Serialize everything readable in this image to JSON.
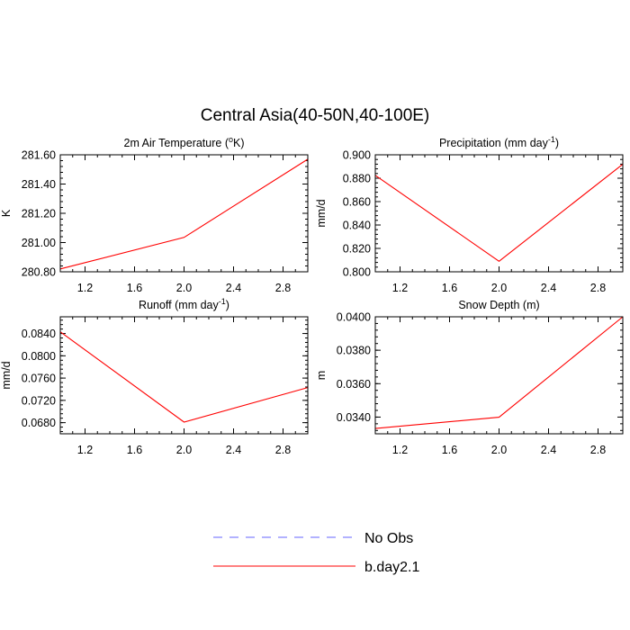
{
  "figure": {
    "title": "Central Asia(40-50N,40-100E)"
  },
  "legend": {
    "items": [
      {
        "label": "No Obs",
        "color": "#6464ff",
        "dashed": true
      },
      {
        "label": "b.day2.1",
        "color": "#ff0000",
        "dashed": false
      }
    ]
  },
  "chart_data": [
    {
      "type": "line",
      "title_main": "2m Air Temperature (",
      "title_sup": "o",
      "title_after": "K)",
      "xlabel": "",
      "ylabel": "K",
      "xlim": [
        1.0,
        3.0
      ],
      "ylim": [
        280.8,
        281.6
      ],
      "x_ticks": [
        "1.2",
        "1.6",
        "2.0",
        "2.4",
        "2.8"
      ],
      "y_ticks": [
        "280.80",
        "281.00",
        "281.20",
        "281.40",
        "281.60"
      ],
      "grid": false,
      "series": [
        {
          "name": "b.day2.1",
          "color": "#ff0000",
          "x": [
            1,
            2,
            3
          ],
          "y": [
            280.82,
            281.035,
            281.57
          ]
        }
      ]
    },
    {
      "type": "line",
      "title_main": "Precipitation (mm day",
      "title_sup": "-1",
      "title_after": ")",
      "xlabel": "",
      "ylabel": "mm/d",
      "xlim": [
        1.0,
        3.0
      ],
      "ylim": [
        0.8,
        0.9
      ],
      "x_ticks": [
        "1.2",
        "1.6",
        "2.0",
        "2.4",
        "2.8"
      ],
      "y_ticks": [
        "0.800",
        "0.820",
        "0.840",
        "0.860",
        "0.880",
        "0.900"
      ],
      "grid": false,
      "series": [
        {
          "name": "b.day2.1",
          "color": "#ff0000",
          "x": [
            1,
            2,
            3
          ],
          "y": [
            0.8825,
            0.809,
            0.892
          ]
        }
      ]
    },
    {
      "type": "line",
      "title_main": "Runoff (mm day",
      "title_sup": "-1",
      "title_after": ")",
      "xlabel": "",
      "ylabel": "mm/d",
      "xlim": [
        1.0,
        3.0
      ],
      "ylim": [
        0.066,
        0.087
      ],
      "x_ticks": [
        "1.2",
        "1.6",
        "2.0",
        "2.4",
        "2.8"
      ],
      "y_ticks": [
        "0.0680",
        "0.0720",
        "0.0760",
        "0.0800",
        "0.0840"
      ],
      "grid": false,
      "series": [
        {
          "name": "b.day2.1",
          "color": "#ff0000",
          "x": [
            1,
            2,
            3
          ],
          "y": [
            0.0843,
            0.0681,
            0.0743
          ]
        }
      ]
    },
    {
      "type": "line",
      "title_main": "Snow Depth (m)",
      "title_sup": "",
      "title_after": "",
      "xlabel": "",
      "ylabel": "m",
      "xlim": [
        1.0,
        3.0
      ],
      "ylim": [
        0.033,
        0.04
      ],
      "x_ticks": [
        "1.2",
        "1.6",
        "2.0",
        "2.4",
        "2.8"
      ],
      "y_ticks": [
        "0.0340",
        "0.0360",
        "0.0380",
        "0.0400"
      ],
      "grid": false,
      "series": [
        {
          "name": "b.day2.1",
          "color": "#ff0000",
          "x": [
            1,
            2,
            3
          ],
          "y": [
            0.03332,
            0.03399,
            0.04
          ]
        }
      ]
    }
  ]
}
